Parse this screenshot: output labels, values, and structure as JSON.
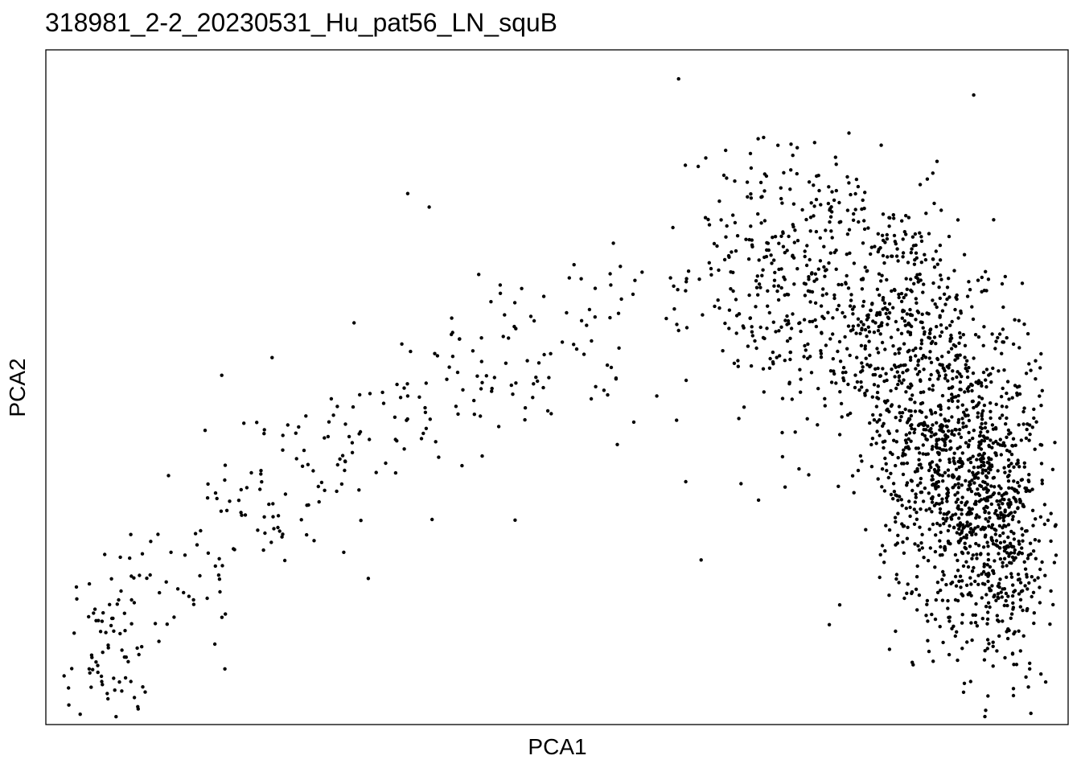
{
  "chart_data": {
    "type": "scatter",
    "title": "318981_2-2_20230531_Hu_pat56_LN_squB",
    "xlabel": "PCA1",
    "ylabel": "PCA2",
    "xlim": [
      0,
      100
    ],
    "ylim": [
      0,
      100
    ],
    "axis_ticks": false,
    "grid": false,
    "legend": "none",
    "point_color": "#000000",
    "point_count_approx": 2400,
    "series": [
      {
        "name": "",
        "x": [
          61.9,
          66.5,
          73.5,
          79.3,
          70.3,
          51.2,
          56.2,
          55.2,
          37.5,
          35.4,
          12.0,
          5.5,
          6.0,
          7.2,
          22.7,
          49.1,
          45.9,
          68.0,
          64.1,
          62.6,
          61.7,
          55.9,
          37.2,
          61.9,
          80.9
        ],
        "y": [
          95.7,
          85.1,
          85.5,
          80.8,
          79.1,
          66.2,
          67.9,
          66.8,
          76.7,
          78.7,
          36.9,
          15.3,
          4.6,
          6.3,
          29.2,
          46.5,
          30.3,
          35.7,
          24.4,
          36.0,
          45.1,
          41.5,
          50.6,
          58.4,
          45.9
        ]
      }
    ],
    "clusters": [
      {
        "cx": 28.0,
        "cy": 55.0,
        "sx": 11.0,
        "sy": 9.0,
        "n": 260,
        "shape": "arc-lower-left"
      },
      {
        "cx": 6.0,
        "cy": 10.0,
        "sx": 2.0,
        "sy": 6.0,
        "n": 70
      },
      {
        "cx": 72.0,
        "cy": 68.0,
        "sx": 4.5,
        "sy": 9.0,
        "n": 260
      },
      {
        "cx": 82.5,
        "cy": 59.0,
        "sx": 5.0,
        "sy": 10.0,
        "n": 520
      },
      {
        "cx": 89.5,
        "cy": 38.0,
        "sx": 4.0,
        "sy": 11.0,
        "n": 900
      },
      {
        "cx": 93.5,
        "cy": 25.0,
        "sx": 2.5,
        "sy": 9.0,
        "n": 300
      }
    ]
  }
}
